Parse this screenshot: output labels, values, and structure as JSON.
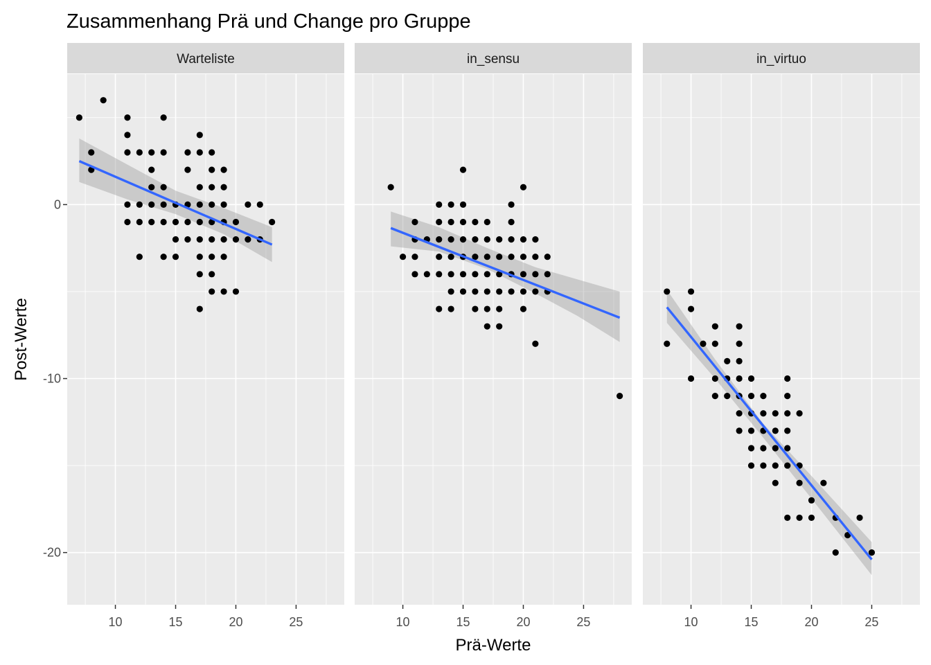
{
  "chart_data": {
    "type": "scatter",
    "title": "Zusammenhang Prä und Change pro Gruppe",
    "xlabel": "Prä-Werte",
    "ylabel": "Post-Werte",
    "xlim": [
      6,
      29
    ],
    "ylim": [
      -23,
      7.5
    ],
    "x_ticks": [
      10,
      15,
      20,
      25
    ],
    "y_ticks": [
      0,
      -10,
      -20
    ],
    "y_tick_labels": [
      "0",
      "-10",
      "-20"
    ],
    "grid": true,
    "colors": {
      "panel_bg": "#EBEBEB",
      "strip_bg": "#D9D9D9",
      "grid": "#FFFFFF",
      "point": "#000000",
      "smooth_line": "#3366FF",
      "ribbon": "#999999"
    },
    "panels": [
      {
        "label": "Warteliste",
        "points": [
          [
            7,
            5
          ],
          [
            8,
            3
          ],
          [
            8,
            2
          ],
          [
            9,
            6
          ],
          [
            11,
            5
          ],
          [
            11,
            4
          ],
          [
            11,
            3
          ],
          [
            11,
            0
          ],
          [
            11,
            -1
          ],
          [
            12,
            3
          ],
          [
            12,
            0
          ],
          [
            12,
            -1
          ],
          [
            12,
            -3
          ],
          [
            13,
            3
          ],
          [
            13,
            2
          ],
          [
            13,
            1
          ],
          [
            13,
            0
          ],
          [
            13,
            -1
          ],
          [
            14,
            5
          ],
          [
            14,
            3
          ],
          [
            14,
            1
          ],
          [
            14,
            0
          ],
          [
            14,
            -1
          ],
          [
            14,
            -3
          ],
          [
            15,
            0
          ],
          [
            15,
            -1
          ],
          [
            15,
            -2
          ],
          [
            15,
            -3
          ],
          [
            16,
            3
          ],
          [
            16,
            2
          ],
          [
            16,
            0
          ],
          [
            16,
            -1
          ],
          [
            16,
            -2
          ],
          [
            17,
            4
          ],
          [
            17,
            3
          ],
          [
            17,
            1
          ],
          [
            17,
            0
          ],
          [
            17,
            -1
          ],
          [
            17,
            -2
          ],
          [
            17,
            -3
          ],
          [
            17,
            -4
          ],
          [
            17,
            -6
          ],
          [
            18,
            3
          ],
          [
            18,
            2
          ],
          [
            18,
            1
          ],
          [
            18,
            0
          ],
          [
            18,
            -1
          ],
          [
            18,
            -2
          ],
          [
            18,
            -3
          ],
          [
            18,
            -4
          ],
          [
            18,
            -5
          ],
          [
            19,
            2
          ],
          [
            19,
            1
          ],
          [
            19,
            0
          ],
          [
            19,
            -1
          ],
          [
            19,
            -2
          ],
          [
            19,
            -3
          ],
          [
            19,
            -5
          ],
          [
            20,
            -1
          ],
          [
            20,
            -2
          ],
          [
            20,
            -5
          ],
          [
            21,
            0
          ],
          [
            21,
            -2
          ],
          [
            22,
            0
          ],
          [
            22,
            -2
          ],
          [
            23,
            -1
          ]
        ],
        "fit": {
          "x": [
            7,
            23
          ],
          "y": [
            2.5,
            -2.3
          ]
        },
        "ribbon": {
          "x": [
            7,
            11,
            15,
            19,
            23
          ],
          "lower": [
            1.3,
            0.3,
            -0.55,
            -1.7,
            -3.3
          ],
          "upper": [
            3.8,
            2.3,
            0.8,
            -0.2,
            -1.3
          ]
        }
      },
      {
        "label": "in_sensu",
        "points": [
          [
            9,
            1
          ],
          [
            10,
            -3
          ],
          [
            11,
            -1
          ],
          [
            11,
            -2
          ],
          [
            11,
            -3
          ],
          [
            11,
            -4
          ],
          [
            12,
            -2
          ],
          [
            12,
            -4
          ],
          [
            13,
            0
          ],
          [
            13,
            -1
          ],
          [
            13,
            -2
          ],
          [
            13,
            -3
          ],
          [
            13,
            -4
          ],
          [
            13,
            -6
          ],
          [
            14,
            0
          ],
          [
            14,
            -1
          ],
          [
            14,
            -2
          ],
          [
            14,
            -3
          ],
          [
            14,
            -4
          ],
          [
            14,
            -5
          ],
          [
            14,
            -6
          ],
          [
            15,
            2
          ],
          [
            15,
            0
          ],
          [
            15,
            -1
          ],
          [
            15,
            -2
          ],
          [
            15,
            -3
          ],
          [
            15,
            -4
          ],
          [
            15,
            -5
          ],
          [
            16,
            -1
          ],
          [
            16,
            -2
          ],
          [
            16,
            -3
          ],
          [
            16,
            -4
          ],
          [
            16,
            -5
          ],
          [
            16,
            -6
          ],
          [
            17,
            -1
          ],
          [
            17,
            -2
          ],
          [
            17,
            -3
          ],
          [
            17,
            -4
          ],
          [
            17,
            -5
          ],
          [
            17,
            -6
          ],
          [
            17,
            -7
          ],
          [
            18,
            -2
          ],
          [
            18,
            -3
          ],
          [
            18,
            -4
          ],
          [
            18,
            -5
          ],
          [
            18,
            -6
          ],
          [
            18,
            -7
          ],
          [
            19,
            0
          ],
          [
            19,
            -1
          ],
          [
            19,
            -2
          ],
          [
            19,
            -3
          ],
          [
            19,
            -4
          ],
          [
            19,
            -5
          ],
          [
            20,
            1
          ],
          [
            20,
            -2
          ],
          [
            20,
            -3
          ],
          [
            20,
            -4
          ],
          [
            20,
            -5
          ],
          [
            20,
            -6
          ],
          [
            21,
            -2
          ],
          [
            21,
            -3
          ],
          [
            21,
            -4
          ],
          [
            21,
            -5
          ],
          [
            21,
            -8
          ],
          [
            22,
            -3
          ],
          [
            22,
            -4
          ],
          [
            22,
            -5
          ],
          [
            28,
            -11
          ]
        ],
        "fit": {
          "x": [
            9,
            28
          ],
          "y": [
            -1.35,
            -6.5
          ]
        },
        "ribbon": {
          "x": [
            9,
            13,
            17,
            21,
            24.5,
            28
          ],
          "lower": [
            -2.4,
            -2.7,
            -3.7,
            -5.1,
            -6.4,
            -7.9
          ],
          "upper": [
            -0.4,
            -1.3,
            -2.5,
            -3.6,
            -4.3,
            -5.0
          ]
        }
      },
      {
        "label": "in_virtuo",
        "points": [
          [
            8,
            -5
          ],
          [
            8,
            -8
          ],
          [
            10,
            -5
          ],
          [
            10,
            -6
          ],
          [
            10,
            -10
          ],
          [
            11,
            -8
          ],
          [
            12,
            -7
          ],
          [
            12,
            -8
          ],
          [
            12,
            -10
          ],
          [
            12,
            -11
          ],
          [
            13,
            -9
          ],
          [
            13,
            -10
          ],
          [
            13,
            -11
          ],
          [
            14,
            -7
          ],
          [
            14,
            -8
          ],
          [
            14,
            -9
          ],
          [
            14,
            -10
          ],
          [
            14,
            -11
          ],
          [
            14,
            -12
          ],
          [
            14,
            -13
          ],
          [
            15,
            -10
          ],
          [
            15,
            -11
          ],
          [
            15,
            -12
          ],
          [
            15,
            -13
          ],
          [
            15,
            -14
          ],
          [
            15,
            -15
          ],
          [
            16,
            -11
          ],
          [
            16,
            -12
          ],
          [
            16,
            -13
          ],
          [
            16,
            -14
          ],
          [
            16,
            -15
          ],
          [
            17,
            -12
          ],
          [
            17,
            -13
          ],
          [
            17,
            -14
          ],
          [
            17,
            -15
          ],
          [
            17,
            -16
          ],
          [
            18,
            -10
          ],
          [
            18,
            -11
          ],
          [
            18,
            -12
          ],
          [
            18,
            -13
          ],
          [
            18,
            -14
          ],
          [
            18,
            -15
          ],
          [
            18,
            -18
          ],
          [
            19,
            -12
          ],
          [
            19,
            -15
          ],
          [
            19,
            -16
          ],
          [
            19,
            -18
          ],
          [
            20,
            -17
          ],
          [
            20,
            -18
          ],
          [
            21,
            -16
          ],
          [
            22,
            -18
          ],
          [
            22,
            -20
          ],
          [
            23,
            -19
          ],
          [
            24,
            -18
          ],
          [
            25,
            -20
          ]
        ],
        "fit": {
          "x": [
            8,
            25
          ],
          "y": [
            -5.9,
            -20.4
          ]
        },
        "ribbon": {
          "x": [
            8,
            12,
            16,
            20,
            25
          ],
          "lower": [
            -6.8,
            -10.0,
            -13.4,
            -16.9,
            -21.3
          ],
          "upper": [
            -4.9,
            -8.9,
            -12.6,
            -15.6,
            -19.4
          ]
        }
      }
    ]
  }
}
